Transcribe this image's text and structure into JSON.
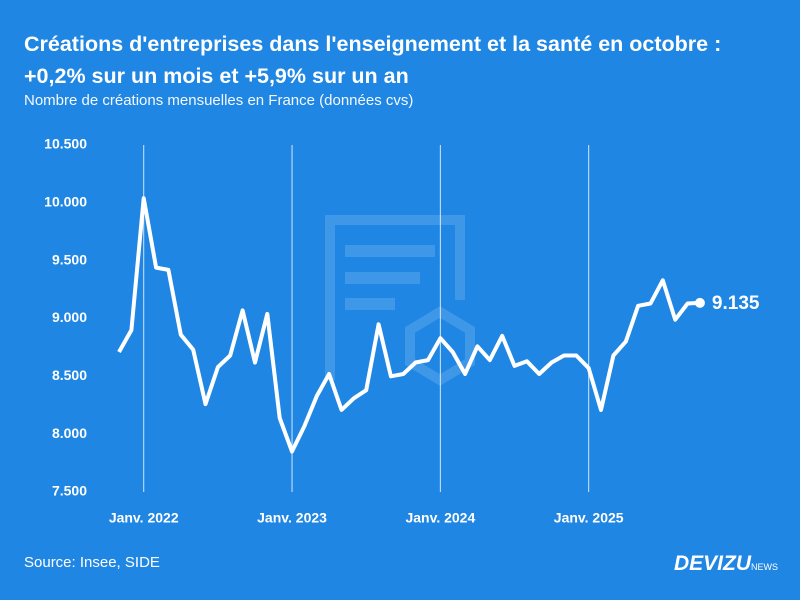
{
  "chart_data": {
    "type": "line",
    "title": "Créations d'entreprises dans l'enseignement et la santé en octobre : +0,2% sur un mois et +5,9% sur un an",
    "subtitle": "Nombre de créations mensuelles en France (données cvs)",
    "source": "Source: Insee, SIDE",
    "brand": "DEVIZU",
    "brand_suffix": "NEWS",
    "categories": [
      null,
      null,
      "Janv. 2022",
      null,
      null,
      null,
      null,
      null,
      null,
      null,
      null,
      null,
      null,
      null,
      "Janv. 2023",
      null,
      null,
      null,
      null,
      null,
      null,
      null,
      null,
      null,
      null,
      null,
      "Janv. 2024",
      null,
      null,
      null,
      null,
      null,
      null,
      null,
      null,
      null,
      null,
      null,
      "Janv. 2025",
      null,
      null,
      null,
      null,
      null,
      null,
      null,
      null,
      null
    ],
    "values": [
      8710,
      8900,
      10040,
      9440,
      9420,
      8860,
      8730,
      8260,
      8580,
      8680,
      9070,
      8620,
      9040,
      8140,
      7850,
      8070,
      8330,
      8520,
      8210,
      8310,
      8380,
      8950,
      8500,
      8520,
      8620,
      8640,
      8830,
      8710,
      8520,
      8760,
      8640,
      8850,
      8590,
      8630,
      8520,
      8620,
      8680,
      8680,
      8570,
      8210,
      8680,
      8800,
      9110,
      9130,
      9330,
      8990,
      9130,
      9135
    ],
    "value_labels": [
      null,
      null,
      null,
      null,
      null,
      null,
      null,
      null,
      null,
      null,
      null,
      null,
      null,
      null,
      null,
      null,
      null,
      null,
      null,
      null,
      null,
      null,
      null,
      null,
      null,
      null,
      null,
      null,
      null,
      null,
      null,
      null,
      null,
      null,
      null,
      null,
      null,
      null,
      null,
      null,
      null,
      null,
      null,
      null,
      null,
      null,
      null,
      "9.135"
    ],
    "color": "#ffffff",
    "ylim": [
      7500,
      10500
    ],
    "yticks": [
      {
        "value": 7500,
        "label": "7.500"
      },
      {
        "value": 8000,
        "label": "8.000"
      },
      {
        "value": 8500,
        "label": "8.500"
      },
      {
        "value": 9000,
        "label": "9.000"
      },
      {
        "value": 9500,
        "label": "9.500"
      },
      {
        "value": 10000,
        "label": "10.000"
      },
      {
        "value": 10500,
        "label": "10.500"
      }
    ],
    "grid": false
  }
}
